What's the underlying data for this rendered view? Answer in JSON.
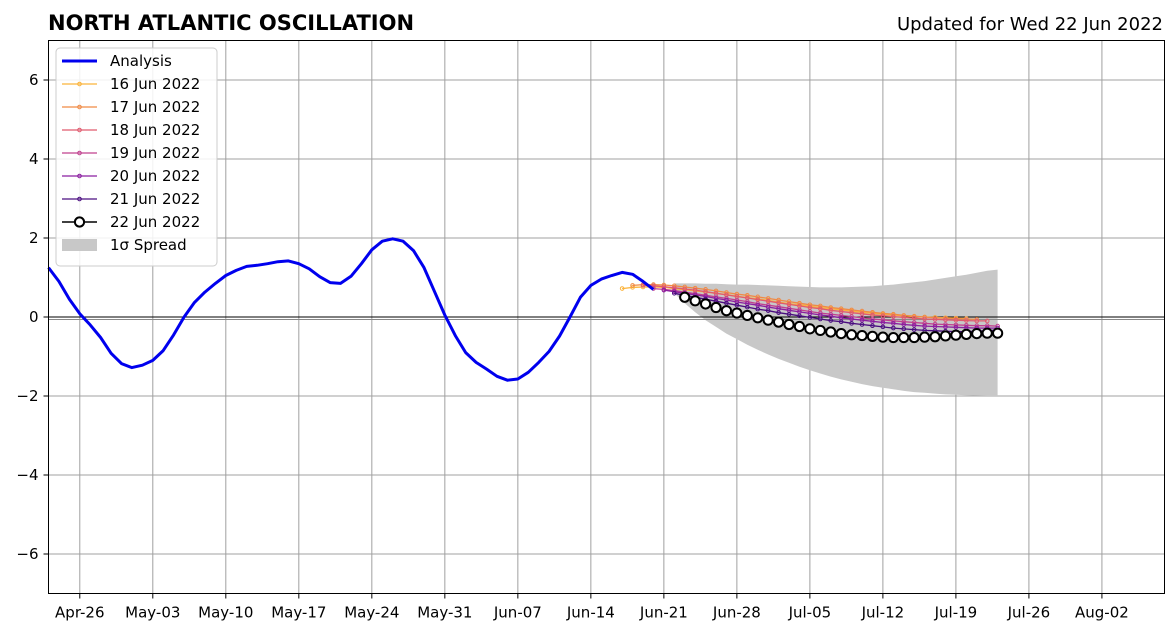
{
  "chart_data": {
    "type": "line",
    "title": "NORTH ATLANTIC OSCILLATION",
    "subtitle": "Updated for Wed 22 Jun 2022",
    "xlabel": "",
    "ylabel": "",
    "xlim": [
      "2022-04-23",
      "2022-08-08"
    ],
    "ylim": [
      -7,
      7
    ],
    "x_ticks": [
      "Apr-26",
      "May-03",
      "May-10",
      "May-17",
      "May-24",
      "May-31",
      "Jun-07",
      "Jun-14",
      "Jun-21",
      "Jun-28",
      "Jul-05",
      "Jul-12",
      "Jul-19",
      "Jul-26",
      "Aug-02"
    ],
    "x_tick_dates": [
      "2022-04-26",
      "2022-05-03",
      "2022-05-10",
      "2022-05-17",
      "2022-05-24",
      "2022-05-31",
      "2022-06-07",
      "2022-06-14",
      "2022-06-21",
      "2022-06-28",
      "2022-07-05",
      "2022-07-12",
      "2022-07-19",
      "2022-07-26",
      "2022-08-02"
    ],
    "y_ticks": [
      -6,
      -4,
      -2,
      0,
      2,
      4,
      6
    ],
    "y_tick_labels": [
      "−6",
      "−4",
      "−2",
      "0",
      "2",
      "4",
      "6"
    ],
    "grid": true,
    "legend_position": "top-left",
    "legend": [
      "Analysis",
      "16 Jun 2022",
      "17 Jun 2022",
      "18 Jun 2022",
      "19 Jun 2022",
      "20 Jun 2022",
      "21 Jun 2022",
      "22 Jun 2022",
      "1σ Spread"
    ],
    "analysis": {
      "name": "Analysis",
      "color": "#0000ee",
      "start_date": "2022-04-23",
      "values": [
        1.25,
        0.9,
        0.45,
        0.08,
        -0.2,
        -0.52,
        -0.92,
        -1.18,
        -1.28,
        -1.22,
        -1.1,
        -0.85,
        -0.45,
        0.0,
        0.37,
        0.63,
        0.85,
        1.05,
        1.18,
        1.28,
        1.31,
        1.35,
        1.4,
        1.42,
        1.35,
        1.22,
        1.02,
        0.87,
        0.85,
        1.03,
        1.35,
        1.7,
        1.92,
        1.98,
        1.92,
        1.68,
        1.25,
        0.65,
        0.05,
        -0.47,
        -0.9,
        -1.15,
        -1.32,
        -1.5,
        -1.6,
        -1.57,
        -1.4,
        -1.15,
        -0.87,
        -0.48,
        0.0,
        0.5,
        0.8,
        0.96,
        1.05,
        1.13,
        1.08,
        0.9,
        0.7
      ]
    },
    "forecasts": [
      {
        "name": "16 Jun 2022",
        "color": "#fbb33a",
        "start_date": "2022-06-17",
        "values": [
          0.72,
          0.75,
          0.76,
          0.76,
          0.75,
          0.72,
          0.69,
          0.66,
          0.63,
          0.6,
          0.57,
          0.53,
          0.49,
          0.46,
          0.42,
          0.38,
          0.34,
          0.31,
          0.27,
          0.24,
          0.21,
          0.18,
          0.15,
          0.12,
          0.09,
          0.07,
          0.05,
          0.03,
          0.01,
          0.0,
          -0.01,
          -0.02,
          -0.03,
          -0.04
        ]
      },
      {
        "name": "17 Jun 2022",
        "color": "#f08a45",
        "start_date": "2022-06-18",
        "values": [
          0.8,
          0.82,
          0.82,
          0.81,
          0.79,
          0.76,
          0.73,
          0.7,
          0.66,
          0.62,
          0.58,
          0.55,
          0.51,
          0.47,
          0.43,
          0.39,
          0.35,
          0.31,
          0.28,
          0.24,
          0.21,
          0.18,
          0.15,
          0.12,
          0.09,
          0.07,
          0.04,
          0.02,
          0.0,
          -0.02,
          -0.03,
          -0.04,
          -0.05,
          -0.06
        ]
      },
      {
        "name": "18 Jun 2022",
        "color": "#e05a6e",
        "start_date": "2022-06-19",
        "values": [
          0.8,
          0.79,
          0.77,
          0.74,
          0.71,
          0.68,
          0.64,
          0.6,
          0.56,
          0.52,
          0.48,
          0.44,
          0.4,
          0.36,
          0.32,
          0.28,
          0.24,
          0.21,
          0.17,
          0.14,
          0.11,
          0.08,
          0.05,
          0.03,
          0.01,
          -0.01,
          -0.03,
          -0.05,
          -0.06,
          -0.07,
          -0.08,
          -0.09,
          -0.1,
          -0.1
        ]
      },
      {
        "name": "19 Jun 2022",
        "color": "#c0408e",
        "start_date": "2022-06-20",
        "values": [
          0.72,
          0.7,
          0.67,
          0.63,
          0.59,
          0.55,
          0.51,
          0.47,
          0.43,
          0.39,
          0.34,
          0.3,
          0.26,
          0.22,
          0.18,
          0.14,
          0.1,
          0.07,
          0.04,
          0.01,
          -0.02,
          -0.05,
          -0.07,
          -0.1,
          -0.12,
          -0.14,
          -0.16,
          -0.18,
          -0.19,
          -0.2,
          -0.21,
          -0.22,
          -0.22,
          -0.23
        ]
      },
      {
        "name": "20 Jun 2022",
        "color": "#8b1ea0",
        "start_date": "2022-06-21",
        "values": [
          0.68,
          0.64,
          0.6,
          0.56,
          0.52,
          0.47,
          0.43,
          0.38,
          0.34,
          0.3,
          0.25,
          0.21,
          0.17,
          0.13,
          0.09,
          0.05,
          0.02,
          -0.02,
          -0.05,
          -0.08,
          -0.11,
          -0.14,
          -0.16,
          -0.19,
          -0.21,
          -0.23,
          -0.24,
          -0.25,
          -0.26,
          -0.27,
          -0.28,
          -0.28,
          -0.28
        ]
      },
      {
        "name": "21 Jun 2022",
        "color": "#4a0d80",
        "start_date": "2022-06-22",
        "values": [
          0.6,
          0.55,
          0.5,
          0.45,
          0.4,
          0.35,
          0.3,
          0.25,
          0.2,
          0.16,
          0.11,
          0.07,
          0.03,
          -0.01,
          -0.05,
          -0.09,
          -0.12,
          -0.16,
          -0.19,
          -0.22,
          -0.25,
          -0.28,
          -0.3,
          -0.32,
          -0.34,
          -0.35,
          -0.36,
          -0.37,
          -0.37,
          -0.36,
          -0.35,
          -0.33
        ]
      },
      {
        "name": "22 Jun 2022",
        "color": "#000000",
        "marker_fill": "#ffffff",
        "start_date": "2022-06-23",
        "values": [
          0.5,
          0.41,
          0.33,
          0.24,
          0.16,
          0.1,
          0.04,
          -0.02,
          -0.08,
          -0.13,
          -0.19,
          -0.24,
          -0.3,
          -0.34,
          -0.38,
          -0.42,
          -0.45,
          -0.47,
          -0.49,
          -0.51,
          -0.52,
          -0.52,
          -0.52,
          -0.51,
          -0.5,
          -0.48,
          -0.46,
          -0.44,
          -0.42,
          -0.41,
          -0.41
        ]
      }
    ],
    "spread": {
      "name": "1σ Spread",
      "color": "#c8c8c8",
      "start_date": "2022-06-22",
      "upper": [
        0.85,
        0.85,
        0.85,
        0.84,
        0.84,
        0.83,
        0.82,
        0.82,
        0.81,
        0.8,
        0.79,
        0.78,
        0.77,
        0.76,
        0.75,
        0.75,
        0.75,
        0.76,
        0.77,
        0.78,
        0.8,
        0.82,
        0.85,
        0.88,
        0.91,
        0.95,
        0.99,
        1.03,
        1.07,
        1.12,
        1.17,
        1.2
      ],
      "lower": [
        0.6,
        0.35,
        0.12,
        -0.08,
        -0.25,
        -0.42,
        -0.56,
        -0.7,
        -0.83,
        -0.95,
        -1.06,
        -1.16,
        -1.26,
        -1.35,
        -1.43,
        -1.51,
        -1.58,
        -1.64,
        -1.7,
        -1.75,
        -1.79,
        -1.83,
        -1.87,
        -1.9,
        -1.92,
        -1.94,
        -1.96,
        -1.97,
        -1.98,
        -1.99,
        -2.0,
        -2.0
      ]
    }
  }
}
